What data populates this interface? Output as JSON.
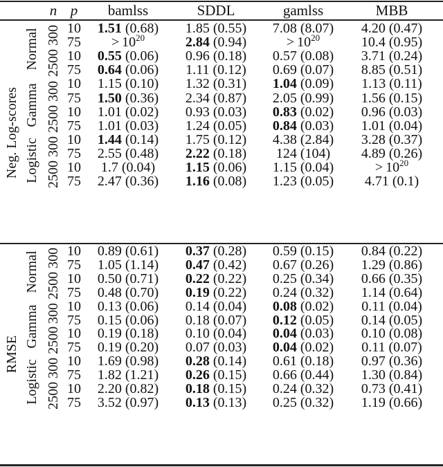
{
  "header": {
    "n": "n",
    "p": "p",
    "columns": [
      "bamlss",
      "SDDL",
      "gamlss",
      "MBB"
    ]
  },
  "sections": [
    {
      "label": "Neg. Log-scores",
      "distributions": [
        {
          "label": "Normal",
          "groups": [
            {
              "n": "300",
              "rows": [
                {
                  "p": "10",
                  "cells": [
                    {
                      "v": "1.51",
                      "sd": "(0.68)",
                      "bold": true
                    },
                    {
                      "v": "1.85",
                      "sd": "(0.55)",
                      "bold": false
                    },
                    {
                      "v": "7.08",
                      "sd": "(8.07)",
                      "bold": false
                    },
                    {
                      "v": "4.20",
                      "sd": "(0.47)",
                      "bold": false
                    }
                  ]
                },
                {
                  "p": "75",
                  "cells": [
                    {
                      "v": "> 10^20",
                      "sd": "",
                      "bold": false,
                      "exp": true
                    },
                    {
                      "v": "2.84",
                      "sd": "(0.94)",
                      "bold": true
                    },
                    {
                      "v": "> 10^20",
                      "sd": "",
                      "bold": false,
                      "exp": true
                    },
                    {
                      "v": "10.4",
                      "sd": "(0.95)",
                      "bold": false
                    }
                  ]
                }
              ]
            },
            {
              "n": "2500",
              "rows": [
                {
                  "p": "10",
                  "cells": [
                    {
                      "v": "0.55",
                      "sd": "(0.06)",
                      "bold": true
                    },
                    {
                      "v": "0.96",
                      "sd": "(0.18)",
                      "bold": false
                    },
                    {
                      "v": "0.57",
                      "sd": "(0.08)",
                      "bold": false
                    },
                    {
                      "v": "3.71",
                      "sd": "(0.24)",
                      "bold": false
                    }
                  ]
                },
                {
                  "p": "75",
                  "cells": [
                    {
                      "v": "0.64",
                      "sd": "(0.06)",
                      "bold": true
                    },
                    {
                      "v": "1.11",
                      "sd": "(0.12)",
                      "bold": false
                    },
                    {
                      "v": "0.69",
                      "sd": "(0.07)",
                      "bold": false
                    },
                    {
                      "v": "8.85",
                      "sd": "(0.51)",
                      "bold": false
                    }
                  ]
                }
              ]
            }
          ]
        },
        {
          "label": "Gamma",
          "groups": [
            {
              "n": "300",
              "rows": [
                {
                  "p": "10",
                  "cells": [
                    {
                      "v": "1.15",
                      "sd": "(0.10)",
                      "bold": false
                    },
                    {
                      "v": "1.32",
                      "sd": "(0.31)",
                      "bold": false
                    },
                    {
                      "v": "1.04",
                      "sd": "(0.09)",
                      "bold": true
                    },
                    {
                      "v": "1.13",
                      "sd": "(0.11)",
                      "bold": false
                    }
                  ]
                },
                {
                  "p": "75",
                  "cells": [
                    {
                      "v": "1.50",
                      "sd": "(0.36)",
                      "bold": true
                    },
                    {
                      "v": "2.34",
                      "sd": "(0.87)",
                      "bold": false
                    },
                    {
                      "v": "2.05",
                      "sd": "(0.99)",
                      "bold": false
                    },
                    {
                      "v": "1.56",
                      "sd": "(0.15)",
                      "bold": false
                    }
                  ]
                }
              ]
            },
            {
              "n": "2500",
              "rows": [
                {
                  "p": "10",
                  "cells": [
                    {
                      "v": "1.01",
                      "sd": "(0.02)",
                      "bold": false
                    },
                    {
                      "v": "0.93",
                      "sd": "(0.03)",
                      "bold": false
                    },
                    {
                      "v": "0.83",
                      "sd": "(0.02)",
                      "bold": true
                    },
                    {
                      "v": "0.96",
                      "sd": "(0.03)",
                      "bold": false
                    }
                  ]
                },
                {
                  "p": "75",
                  "cells": [
                    {
                      "v": "1.01",
                      "sd": "(0.03)",
                      "bold": false
                    },
                    {
                      "v": "1.24",
                      "sd": "(0.05)",
                      "bold": false
                    },
                    {
                      "v": "0.84",
                      "sd": "(0.03)",
                      "bold": true
                    },
                    {
                      "v": "1.01",
                      "sd": "(0.04)",
                      "bold": false
                    }
                  ]
                }
              ]
            }
          ]
        },
        {
          "label": "Logistic",
          "groups": [
            {
              "n": "300",
              "rows": [
                {
                  "p": "10",
                  "cells": [
                    {
                      "v": "1.44",
                      "sd": "(0.14)",
                      "bold": true
                    },
                    {
                      "v": "1.75",
                      "sd": "(0.12)",
                      "bold": false
                    },
                    {
                      "v": "4.38",
                      "sd": "(2.84)",
                      "bold": false
                    },
                    {
                      "v": "3.28",
                      "sd": "(0.37)",
                      "bold": false
                    }
                  ]
                },
                {
                  "p": "75",
                  "cells": [
                    {
                      "v": "2.55",
                      "sd": "(0.48)",
                      "bold": false
                    },
                    {
                      "v": "2.22",
                      "sd": "(0.18)",
                      "bold": true
                    },
                    {
                      "v": "124",
                      "sd": "(104)",
                      "bold": false
                    },
                    {
                      "v": "4.89",
                      "sd": "(0.26)",
                      "bold": false
                    }
                  ]
                }
              ]
            },
            {
              "n": "2500",
              "rows": [
                {
                  "p": "10",
                  "cells": [
                    {
                      "v": "1.7",
                      "sd": "(0.04)",
                      "bold": false
                    },
                    {
                      "v": "1.15",
                      "sd": "(0.06)",
                      "bold": true
                    },
                    {
                      "v": "1.15",
                      "sd": "(0.04)",
                      "bold": false
                    },
                    {
                      "v": "> 10^20",
                      "sd": "",
                      "bold": false,
                      "exp": true
                    }
                  ]
                },
                {
                  "p": "75",
                  "cells": [
                    {
                      "v": "2.47",
                      "sd": "(0.36)",
                      "bold": false
                    },
                    {
                      "v": "1.16",
                      "sd": "(0.08)",
                      "bold": true
                    },
                    {
                      "v": "1.23",
                      "sd": "(0.05)",
                      "bold": false
                    },
                    {
                      "v": "4.71",
                      "sd": "(0.1)",
                      "bold": false
                    }
                  ]
                }
              ]
            }
          ]
        }
      ]
    },
    {
      "label": "RMSE",
      "distributions": [
        {
          "label": "Normal",
          "groups": [
            {
              "n": "300",
              "rows": [
                {
                  "p": "10",
                  "cells": [
                    {
                      "v": "0.89",
                      "sd": "(0.61)",
                      "bold": false
                    },
                    {
                      "v": "0.37",
                      "sd": "(0.28)",
                      "bold": true
                    },
                    {
                      "v": "0.59",
                      "sd": "(0.15)",
                      "bold": false
                    },
                    {
                      "v": "0.84",
                      "sd": "(0.22)",
                      "bold": false
                    }
                  ]
                },
                {
                  "p": "75",
                  "cells": [
                    {
                      "v": "1.05",
                      "sd": "(1.14)",
                      "bold": false
                    },
                    {
                      "v": "0.47",
                      "sd": "(0.42)",
                      "bold": true
                    },
                    {
                      "v": "0.67",
                      "sd": "(0.26)",
                      "bold": false
                    },
                    {
                      "v": "1.29",
                      "sd": "(0.86)",
                      "bold": false
                    }
                  ]
                }
              ]
            },
            {
              "n": "2500",
              "rows": [
                {
                  "p": "10",
                  "cells": [
                    {
                      "v": "0.50",
                      "sd": "(0.71)",
                      "bold": false
                    },
                    {
                      "v": "0.22",
                      "sd": "(0.22)",
                      "bold": true
                    },
                    {
                      "v": "0.25",
                      "sd": "(0.34)",
                      "bold": false
                    },
                    {
                      "v": "0.66",
                      "sd": "(0.35)",
                      "bold": false
                    }
                  ]
                },
                {
                  "p": "75",
                  "cells": [
                    {
                      "v": "0.48",
                      "sd": "(0.70)",
                      "bold": false
                    },
                    {
                      "v": "0.19",
                      "sd": "(0.22)",
                      "bold": true
                    },
                    {
                      "v": "0.24",
                      "sd": "(0.32)",
                      "bold": false
                    },
                    {
                      "v": "1.14",
                      "sd": "(0.64)",
                      "bold": false
                    }
                  ]
                }
              ]
            }
          ]
        },
        {
          "label": "Gamma",
          "groups": [
            {
              "n": "300",
              "rows": [
                {
                  "p": "10",
                  "cells": [
                    {
                      "v": "0.13",
                      "sd": "(0.06)",
                      "bold": false
                    },
                    {
                      "v": "0.14",
                      "sd": "(0.04)",
                      "bold": false
                    },
                    {
                      "v": "0.08",
                      "sd": "(0.02)",
                      "bold": true
                    },
                    {
                      "v": "0.11",
                      "sd": "(0.04)",
                      "bold": false
                    }
                  ]
                },
                {
                  "p": "75",
                  "cells": [
                    {
                      "v": "0.15",
                      "sd": "(0.06)",
                      "bold": false
                    },
                    {
                      "v": "0.18",
                      "sd": "(0.07)",
                      "bold": false
                    },
                    {
                      "v": "0.12",
                      "sd": "(0.05)",
                      "bold": true
                    },
                    {
                      "v": "0.14",
                      "sd": "(0.05)",
                      "bold": false
                    }
                  ]
                }
              ]
            },
            {
              "n": "2500",
              "rows": [
                {
                  "p": "10",
                  "cells": [
                    {
                      "v": "0.19",
                      "sd": "(0.18)",
                      "bold": false
                    },
                    {
                      "v": "0.10",
                      "sd": "(0.04)",
                      "bold": false
                    },
                    {
                      "v": "0.04",
                      "sd": "(0.03)",
                      "bold": true
                    },
                    {
                      "v": "0.10",
                      "sd": "(0.08)",
                      "bold": false
                    }
                  ]
                },
                {
                  "p": "75",
                  "cells": [
                    {
                      "v": "0.19",
                      "sd": "(0.20)",
                      "bold": false
                    },
                    {
                      "v": "0.07",
                      "sd": "(0.03)",
                      "bold": false
                    },
                    {
                      "v": "0.04",
                      "sd": "(0.02)",
                      "bold": true
                    },
                    {
                      "v": "0.11",
                      "sd": "(0.07)",
                      "bold": false
                    }
                  ]
                }
              ]
            }
          ]
        },
        {
          "label": "Logistic",
          "groups": [
            {
              "n": "300",
              "rows": [
                {
                  "p": "10",
                  "cells": [
                    {
                      "v": "1.69",
                      "sd": "(0.98)",
                      "bold": false
                    },
                    {
                      "v": "0.28",
                      "sd": "(0.14)",
                      "bold": true
                    },
                    {
                      "v": "0.61",
                      "sd": "(0.18)",
                      "bold": false
                    },
                    {
                      "v": "0.97",
                      "sd": "(0.36)",
                      "bold": false
                    }
                  ]
                },
                {
                  "p": "75",
                  "cells": [
                    {
                      "v": "1.82",
                      "sd": "(1.21)",
                      "bold": false
                    },
                    {
                      "v": "0.26",
                      "sd": "(0.15)",
                      "bold": true
                    },
                    {
                      "v": "0.66",
                      "sd": "(0.44)",
                      "bold": false
                    },
                    {
                      "v": "1.30",
                      "sd": "(0.84)",
                      "bold": false
                    }
                  ]
                }
              ]
            },
            {
              "n": "2500",
              "rows": [
                {
                  "p": "10",
                  "cells": [
                    {
                      "v": "2.20",
                      "sd": "(0.82)",
                      "bold": false
                    },
                    {
                      "v": "0.18",
                      "sd": "(0.15)",
                      "bold": true
                    },
                    {
                      "v": "0.24",
                      "sd": "(0.32)",
                      "bold": false
                    },
                    {
                      "v": "0.73",
                      "sd": "(0.41)",
                      "bold": false
                    }
                  ]
                },
                {
                  "p": "75",
                  "cells": [
                    {
                      "v": "3.52",
                      "sd": "(0.97)",
                      "bold": false
                    },
                    {
                      "v": "0.13",
                      "sd": "(0.13)",
                      "bold": true
                    },
                    {
                      "v": "0.25",
                      "sd": "(0.32)",
                      "bold": false
                    },
                    {
                      "v": "1.19",
                      "sd": "(0.66)",
                      "bold": false
                    }
                  ]
                }
              ]
            }
          ]
        }
      ]
    }
  ]
}
